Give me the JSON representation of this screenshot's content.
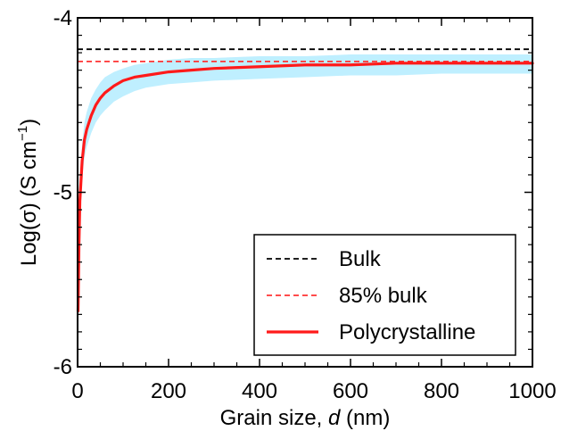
{
  "chart_data": {
    "type": "line",
    "title": "",
    "xlabel": "Grain size, d (nm)",
    "xlabel_parts": {
      "prefix": "Grain size, ",
      "italic": "d",
      "suffix": " (nm)"
    },
    "ylabel": "Log(σ) (S cm⁻¹)",
    "ylabel_parts": {
      "prefix": "Log(σ) (S cm",
      "sup": "−1",
      "suffix": ")"
    },
    "xlim": [
      0,
      1000
    ],
    "ylim": [
      -6,
      -4
    ],
    "x_ticks": [
      0,
      200,
      400,
      600,
      800,
      1000
    ],
    "x_tick_labels": [
      "0",
      "200",
      "400",
      "600",
      "800",
      "1000"
    ],
    "y_ticks": [
      -6,
      -5,
      -4
    ],
    "y_tick_labels": [
      "-6",
      "-5",
      "-4"
    ],
    "grid": false,
    "legend_position": "bottom-right",
    "series": [
      {
        "name": "Bulk",
        "style": "dashed",
        "color": "#000000",
        "x": [
          0,
          1000
        ],
        "y": [
          -4.18,
          -4.18
        ]
      },
      {
        "name": "85% bulk",
        "style": "dashed",
        "color": "#ff3333",
        "x": [
          0,
          1000
        ],
        "y": [
          -4.25,
          -4.25
        ]
      },
      {
        "name": "Polycrystalline",
        "style": "solid",
        "color": "#ff1a1a",
        "x": [
          1,
          3,
          5,
          10,
          15,
          20,
          30,
          40,
          50,
          60,
          80,
          100,
          125,
          150,
          200,
          250,
          300,
          400,
          500,
          600,
          700,
          800,
          900,
          1000
        ],
        "y": [
          -5.68,
          -5.3,
          -5.05,
          -4.82,
          -4.7,
          -4.64,
          -4.56,
          -4.5,
          -4.46,
          -4.43,
          -4.39,
          -4.36,
          -4.34,
          -4.33,
          -4.31,
          -4.3,
          -4.29,
          -4.28,
          -4.27,
          -4.27,
          -4.26,
          -4.26,
          -4.26,
          -4.26
        ]
      }
    ],
    "band": {
      "color": "#bfefff",
      "x": [
        1,
        3,
        5,
        10,
        15,
        20,
        30,
        40,
        50,
        60,
        80,
        100,
        125,
        150,
        200,
        250,
        300,
        400,
        500,
        600,
        700,
        800,
        900,
        1000
      ],
      "upper": [
        -5.6,
        -5.2,
        -4.95,
        -4.72,
        -4.6,
        -4.54,
        -4.46,
        -4.41,
        -4.37,
        -4.34,
        -4.31,
        -4.29,
        -4.27,
        -4.26,
        -4.24,
        -4.23,
        -4.23,
        -4.22,
        -4.22,
        -4.21,
        -4.21,
        -4.21,
        -4.21,
        -4.21
      ],
      "lower": [
        -5.75,
        -5.4,
        -5.15,
        -4.92,
        -4.8,
        -4.74,
        -4.66,
        -4.6,
        -4.56,
        -4.53,
        -4.48,
        -4.45,
        -4.42,
        -4.4,
        -4.38,
        -4.37,
        -4.36,
        -4.35,
        -4.34,
        -4.33,
        -4.33,
        -4.32,
        -4.32,
        -4.32
      ]
    }
  }
}
